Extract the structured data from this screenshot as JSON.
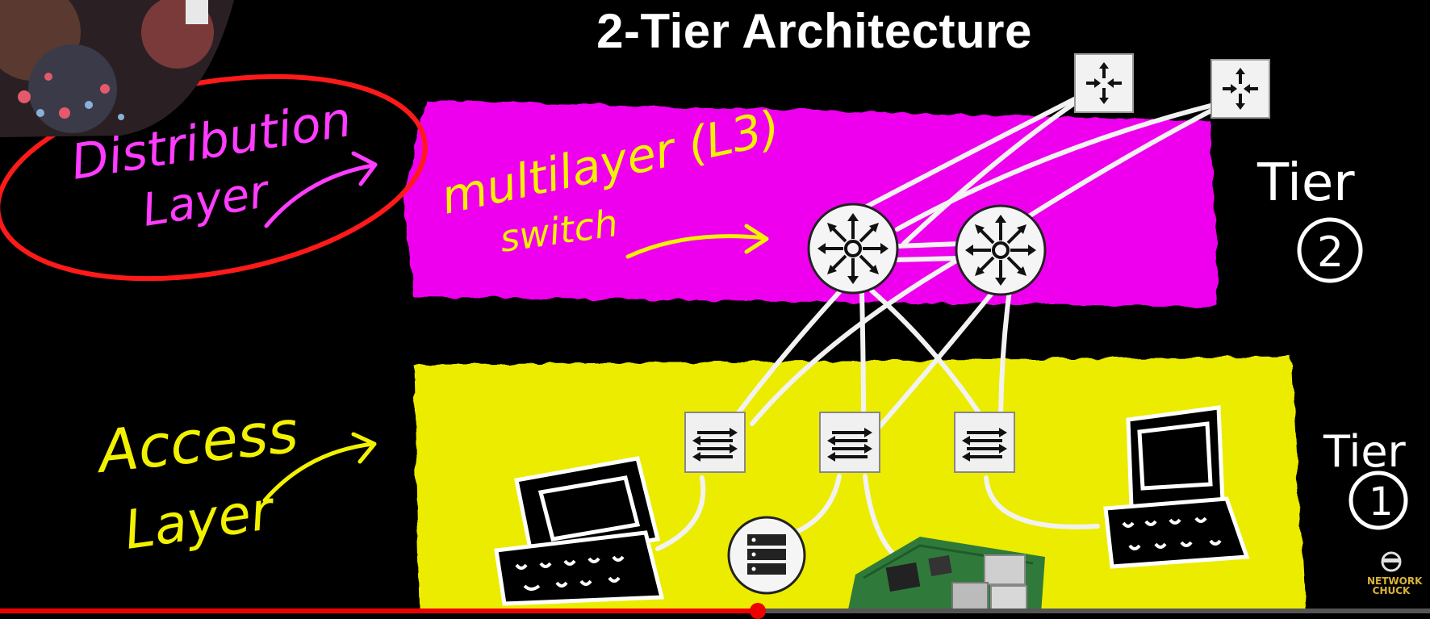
{
  "title": "2-Tier Architecture",
  "annotations": {
    "distribution_line1": "Distribution",
    "distribution_line2": "Layer",
    "multilayer_line1": "multilayer (L3)",
    "multilayer_line2": "switch",
    "tier2_label": "Tier",
    "tier2_number": "2",
    "access_line1": "Access",
    "access_line2": "Layer",
    "tier1_label": "Tier",
    "tier1_number": "1"
  },
  "logo": {
    "line1": "NETWORK",
    "line2": "CHUCK"
  },
  "video": {
    "progress_fraction": 0.53
  },
  "colors": {
    "distribution_band": "#ee00ee",
    "access_band": "#ecec00",
    "red_circle": "#ff1a1a",
    "magenta_text": "#ff3cff",
    "yellow_text": "#f2f200",
    "white": "#ffffff"
  },
  "devices": {
    "routers": [
      "router-icon-1",
      "router-icon-2"
    ],
    "multilayer_switches": [
      "multilayer-switch-icon-1",
      "multilayer-switch-icon-2"
    ],
    "access_switches": [
      "access-switch-icon-1",
      "access-switch-icon-2",
      "access-switch-icon-3"
    ],
    "endpoints": [
      "computer-icon-left",
      "server-icon",
      "raspberry-pi-board",
      "computer-icon-right"
    ]
  }
}
